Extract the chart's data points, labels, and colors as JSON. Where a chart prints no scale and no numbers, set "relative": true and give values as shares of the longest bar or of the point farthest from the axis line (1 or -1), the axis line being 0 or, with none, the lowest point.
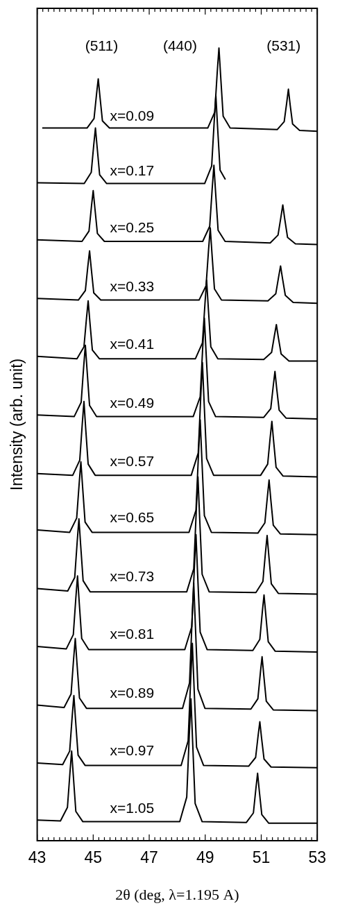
{
  "chart_data": {
    "type": "line",
    "relative": true,
    "xlabel": "2θ (deg, λ=1.195 A)",
    "ylabel": "Intensity (arb. unit)",
    "xlim": [
      43,
      53
    ],
    "xticks": [
      43,
      {
        "value": 43.2,
        "label": null
      },
      {
        "value": 43.4,
        "label": null
      },
      {
        "value": 43.6,
        "label": null
      },
      {
        "value": 43.8,
        "label": null
      },
      {
        "value": 44,
        "label": null
      },
      {
        "value": 44.2,
        "label": null
      },
      {
        "value": 44.4,
        "label": null
      },
      {
        "value": 44.6,
        "label": null
      },
      {
        "value": 44.8,
        "label": null
      },
      45,
      {
        "value": 45.2,
        "label": null
      },
      {
        "value": 45.4,
        "label": null
      },
      {
        "value": 45.6,
        "label": null
      },
      {
        "value": 45.8,
        "label": null
      },
      {
        "value": 46,
        "label": null
      },
      {
        "value": 46.2,
        "label": null
      },
      {
        "value": 46.4,
        "label": null
      },
      {
        "value": 46.6,
        "label": null
      },
      {
        "value": 46.8,
        "label": null
      },
      47,
      {
        "value": 47.2,
        "label": null
      },
      {
        "value": 47.4,
        "label": null
      },
      {
        "value": 47.6,
        "label": null
      },
      {
        "value": 47.8,
        "label": null
      },
      {
        "value": 48,
        "label": null
      },
      {
        "value": 48.2,
        "label": null
      },
      {
        "value": 48.4,
        "label": null
      },
      {
        "value": 48.6,
        "label": null
      },
      {
        "value": 48.8,
        "label": null
      },
      49,
      {
        "value": 49.2,
        "label": null
      },
      {
        "value": 49.4,
        "label": null
      },
      {
        "value": 49.6,
        "label": null
      },
      {
        "value": 49.8,
        "label": null
      },
      {
        "value": 50,
        "label": null
      },
      {
        "value": 50.2,
        "label": null
      },
      {
        "value": 50.4,
        "label": null
      },
      {
        "value": 50.6,
        "label": null
      },
      {
        "value": 50.8,
        "label": null
      },
      51,
      {
        "value": 51.2,
        "label": null
      },
      {
        "value": 51.4,
        "label": null
      },
      {
        "value": 51.6,
        "label": null
      },
      {
        "value": 51.8,
        "label": null
      },
      {
        "value": 52,
        "label": null
      },
      {
        "value": 52.2,
        "label": null
      },
      {
        "value": 52.4,
        "label": null
      },
      {
        "value": 52.6,
        "label": null
      },
      {
        "value": 52.8,
        "label": null
      },
      53
    ],
    "grid": false,
    "legend": false,
    "marker": "none",
    "line_style": "solid",
    "annotations": [
      "(511)",
      "(440)",
      "(531)"
    ],
    "series": [
      {
        "name": "x=0.09",
        "color": "#000000",
        "x": [
          43.18,
          44.78,
          45.03,
          45.12,
          45.18,
          45.24,
          45.33,
          45.58,
          49.09,
          49.34,
          49.43,
          49.49,
          49.55,
          49.64,
          49.89,
          51.57,
          51.82,
          51.91,
          51.97,
          52.03,
          52.12,
          52.37,
          53
        ],
        "values": [
          0.899,
          0.899,
          0.911,
          0.942,
          0.961,
          0.939,
          0.908,
          0.899,
          0.899,
          0.919,
          0.97,
          1.0,
          0.965,
          0.914,
          0.899,
          0.897,
          0.907,
          0.931,
          0.948,
          0.929,
          0.904,
          0.896,
          0.895
        ]
      },
      {
        "name": "x=0.17",
        "color": "#000000",
        "x": [
          43,
          44.68,
          44.93,
          45.02,
          45.08,
          45.14,
          45.23,
          45.48,
          48.98,
          49.23,
          49.32,
          49.38,
          49.44,
          49.53,
          49.72
        ],
        "values": [
          0.83,
          0.829,
          0.843,
          0.878,
          0.899,
          0.875,
          0.84,
          0.829,
          0.829,
          0.851,
          0.907,
          0.94,
          0.901,
          0.846,
          0.834
        ]
      },
      {
        "name": "x=0.25",
        "color": "#000000",
        "x": [
          43,
          44.6,
          44.85,
          44.94,
          45,
          45.06,
          45.15,
          45.4,
          48.91,
          49.16,
          49.25,
          49.31,
          49.37,
          49.46,
          49.71,
          51.32,
          51.6,
          51.7,
          51.77,
          51.84,
          51.94,
          52.22,
          53
        ],
        "values": [
          0.758,
          0.756,
          0.769,
          0.801,
          0.82,
          0.798,
          0.766,
          0.756,
          0.756,
          0.775,
          0.823,
          0.852,
          0.818,
          0.77,
          0.756,
          0.754,
          0.764,
          0.786,
          0.802,
          0.784,
          0.761,
          0.753,
          0.752
        ]
      },
      {
        "name": "x=0.33",
        "color": "#000000",
        "x": [
          43,
          44.47,
          44.72,
          44.81,
          44.87,
          44.93,
          45.02,
          45.27,
          48.78,
          49.03,
          49.12,
          49.18,
          49.24,
          49.33,
          49.58,
          51.24,
          51.52,
          51.62,
          51.69,
          51.76,
          51.86,
          52.14,
          53
        ],
        "values": [
          0.684,
          0.682,
          0.694,
          0.725,
          0.744,
          0.722,
          0.691,
          0.682,
          0.682,
          0.7,
          0.746,
          0.773,
          0.741,
          0.696,
          0.682,
          0.681,
          0.69,
          0.711,
          0.725,
          0.709,
          0.688,
          0.679,
          0.678
        ]
      },
      {
        "name": "x=0.41",
        "color": "#000000",
        "x": [
          43,
          44.42,
          44.67,
          44.76,
          44.82,
          44.88,
          44.97,
          45.22,
          48.65,
          48.9,
          48.99,
          49.05,
          49.11,
          49.2,
          49.45,
          51.09,
          51.37,
          51.47,
          51.54,
          51.61,
          51.71,
          51.99,
          53
        ],
        "values": [
          0.611,
          0.608,
          0.623,
          0.659,
          0.681,
          0.655,
          0.619,
          0.608,
          0.608,
          0.628,
          0.677,
          0.707,
          0.672,
          0.623,
          0.608,
          0.607,
          0.616,
          0.637,
          0.651,
          0.635,
          0.614,
          0.605,
          0.605
        ]
      },
      {
        "name": "x=0.49",
        "color": "#000000",
        "x": [
          43,
          44.32,
          44.57,
          44.66,
          44.72,
          44.78,
          44.87,
          45.12,
          48.57,
          48.82,
          48.91,
          48.97,
          49.03,
          49.12,
          49.37,
          51.09,
          51.34,
          51.43,
          51.49,
          51.55,
          51.64,
          51.89,
          53
        ],
        "values": [
          0.537,
          0.535,
          0.553,
          0.598,
          0.625,
          0.594,
          0.549,
          0.535,
          0.535,
          0.56,
          0.622,
          0.659,
          0.616,
          0.554,
          0.535,
          0.534,
          0.545,
          0.574,
          0.592,
          0.571,
          0.543,
          0.533,
          0.532
        ]
      },
      {
        "name": "x=0.57",
        "color": "#000000",
        "x": [
          43,
          44.27,
          44.52,
          44.61,
          44.67,
          44.73,
          44.82,
          45.07,
          48.5,
          48.75,
          48.84,
          48.9,
          48.96,
          49.05,
          49.3,
          50.98,
          51.23,
          51.32,
          51.38,
          51.44,
          51.53,
          51.78,
          53
        ],
        "values": [
          0.463,
          0.461,
          0.48,
          0.526,
          0.554,
          0.521,
          0.475,
          0.461,
          0.461,
          0.489,
          0.56,
          0.603,
          0.553,
          0.482,
          0.461,
          0.461,
          0.475,
          0.509,
          0.529,
          0.505,
          0.471,
          0.46,
          0.459
        ]
      },
      {
        "name": "x=0.65",
        "color": "#000000",
        "x": [
          43,
          44.16,
          44.41,
          44.5,
          44.56,
          44.62,
          44.71,
          44.96,
          48.42,
          48.67,
          48.76,
          48.82,
          48.88,
          48.97,
          49.22,
          50.88,
          51.13,
          51.22,
          51.28,
          51.34,
          51.43,
          51.68,
          53
        ],
        "values": [
          0.392,
          0.389,
          0.407,
          0.451,
          0.478,
          0.447,
          0.402,
          0.389,
          0.389,
          0.417,
          0.488,
          0.531,
          0.481,
          0.41,
          0.389,
          0.388,
          0.401,
          0.434,
          0.455,
          0.431,
          0.398,
          0.387,
          0.386
        ]
      },
      {
        "name": "x=0.73",
        "color": "#000000",
        "x": [
          43,
          44.09,
          44.34,
          44.43,
          44.49,
          44.55,
          44.64,
          44.89,
          48.34,
          48.59,
          48.68,
          48.74,
          48.8,
          48.89,
          49.14,
          50.81,
          51.06,
          51.15,
          51.21,
          51.27,
          51.36,
          51.61,
          53
        ],
        "values": [
          0.318,
          0.315,
          0.332,
          0.378,
          0.406,
          0.374,
          0.328,
          0.314,
          0.314,
          0.343,
          0.416,
          0.459,
          0.408,
          0.336,
          0.314,
          0.313,
          0.327,
          0.363,
          0.385,
          0.36,
          0.324,
          0.312,
          0.311
        ]
      },
      {
        "name": "x=0.81",
        "color": "#000000",
        "x": [
          43,
          44.04,
          44.29,
          44.38,
          44.44,
          44.5,
          44.59,
          44.84,
          48.27,
          48.52,
          48.61,
          48.67,
          48.73,
          48.82,
          49.07,
          50.7,
          50.95,
          51.04,
          51.1,
          51.16,
          51.25,
          51.5,
          53
        ],
        "values": [
          0.245,
          0.242,
          0.26,
          0.306,
          0.334,
          0.301,
          0.255,
          0.241,
          0.241,
          0.27,
          0.343,
          0.386,
          0.335,
          0.263,
          0.241,
          0.24,
          0.254,
          0.289,
          0.31,
          0.286,
          0.251,
          0.239,
          0.238
        ]
      },
      {
        "name": "x=0.89",
        "color": "#000000",
        "x": [
          43,
          43.96,
          44.21,
          44.3,
          44.36,
          44.42,
          44.51,
          44.76,
          48.19,
          48.44,
          48.53,
          48.59,
          48.65,
          48.74,
          48.99,
          50.63,
          50.88,
          50.97,
          51.03,
          51.09,
          51.18,
          51.43,
          53
        ],
        "values": [
          0.171,
          0.168,
          0.185,
          0.229,
          0.255,
          0.224,
          0.18,
          0.167,
          0.167,
          0.199,
          0.278,
          0.325,
          0.27,
          0.191,
          0.167,
          0.166,
          0.179,
          0.212,
          0.232,
          0.209,
          0.176,
          0.165,
          0.164
        ]
      },
      {
        "name": "x=0.97",
        "color": "#000000",
        "x": [
          43,
          43.91,
          44.16,
          44.25,
          44.31,
          44.37,
          44.46,
          44.71,
          48.14,
          48.39,
          48.48,
          48.54,
          48.6,
          48.69,
          48.94,
          50.55,
          50.8,
          50.89,
          50.95,
          51.01,
          51.1,
          51.35,
          53
        ],
        "values": [
          0.098,
          0.096,
          0.113,
          0.157,
          0.183,
          0.152,
          0.108,
          0.095,
          0.095,
          0.126,
          0.203,
          0.249,
          0.195,
          0.118,
          0.095,
          0.094,
          0.105,
          0.133,
          0.15,
          0.13,
          0.103,
          0.093,
          0.092
        ]
      },
      {
        "name": "x=1.05",
        "color": "#000000",
        "x": [
          43,
          43.83,
          44.08,
          44.17,
          44.23,
          44.29,
          44.38,
          44.63,
          48.09,
          48.34,
          48.43,
          48.49,
          48.55,
          48.64,
          48.89,
          50.47,
          50.72,
          50.81,
          50.87,
          50.93,
          51.02,
          51.27,
          53
        ],
        "values": [
          0.026,
          0.025,
          0.042,
          0.086,
          0.113,
          0.082,
          0.037,
          0.024,
          0.024,
          0.055,
          0.133,
          0.179,
          0.125,
          0.047,
          0.024,
          0.023,
          0.035,
          0.066,
          0.085,
          0.063,
          0.033,
          0.022,
          0.022
        ]
      }
    ]
  }
}
